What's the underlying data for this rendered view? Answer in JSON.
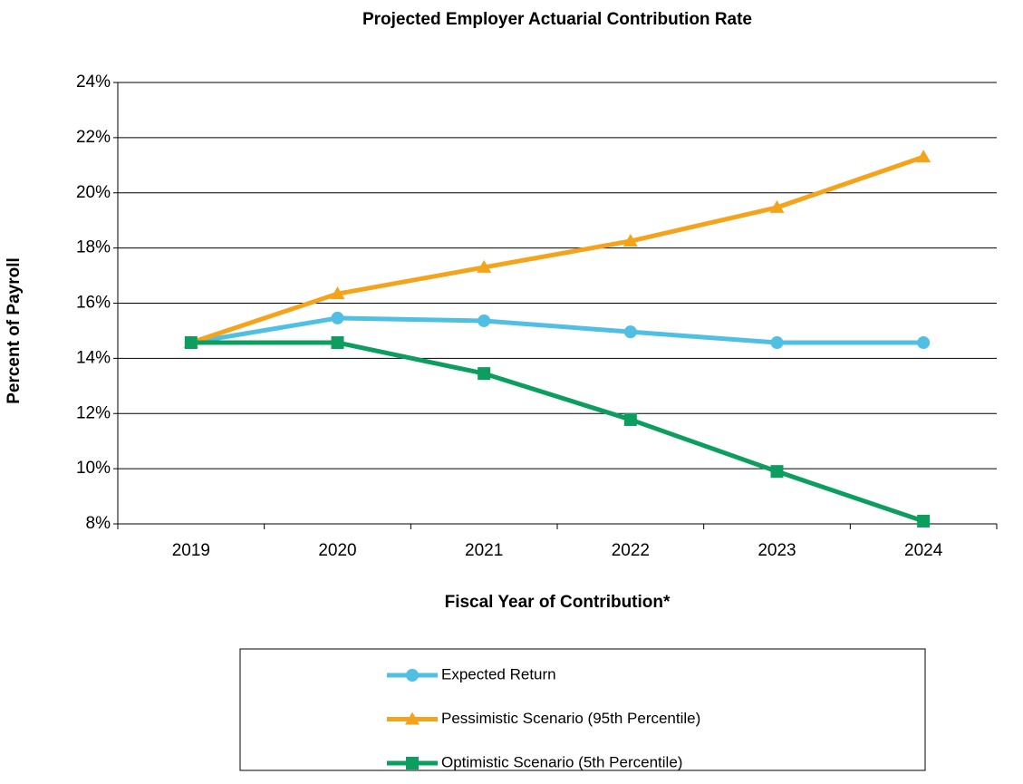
{
  "chart_data": {
    "type": "line",
    "title": "Projected Employer Actuarial Contribution Rate",
    "x_label": "Fiscal Year of Contribution*",
    "y_label": "Percent of Payroll",
    "categories": [
      "2019",
      "2020",
      "2021",
      "2022",
      "2023",
      "2024"
    ],
    "series": [
      {
        "name": "Expected Return",
        "color": "#4fbfe3",
        "marker": "circle",
        "values": [
          14.57,
          15.46,
          15.36,
          14.96,
          14.57,
          14.57
        ]
      },
      {
        "name": "Pessimistic Scenario (95th Percentile)",
        "color": "#f5a31a",
        "marker": "triangle",
        "values": [
          14.57,
          16.34,
          17.3,
          18.25,
          19.47,
          21.3
        ]
      },
      {
        "name": "Optimistic Scenario (5th Percentile)",
        "color": "#0b9e5e",
        "marker": "square",
        "values": [
          14.57,
          14.57,
          13.45,
          11.78,
          9.9,
          8.1
        ]
      }
    ],
    "ylim": [
      8,
      24
    ],
    "yticks": [
      {
        "value": 8,
        "label": "8%"
      },
      {
        "value": 10,
        "label": "10%"
      },
      {
        "value": 12,
        "label": "12%"
      },
      {
        "value": 14,
        "label": "14%"
      },
      {
        "value": 16,
        "label": "16%"
      },
      {
        "value": 18,
        "label": "18%"
      },
      {
        "value": 20,
        "label": "20%"
      },
      {
        "value": 22,
        "label": "22%"
      },
      {
        "value": 24,
        "label": "24%"
      }
    ],
    "grid": true,
    "legend": "bottom"
  }
}
